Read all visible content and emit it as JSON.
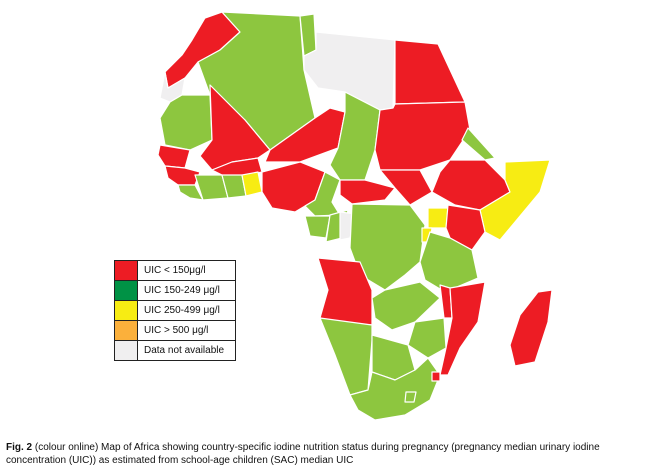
{
  "colors": {
    "red": "#ed1c24",
    "green": "#009245",
    "lightgreen": "#8dc63f",
    "yellow": "#f7ec13",
    "orange": "#fbb03b",
    "na": "#f0eff0"
  },
  "legend": [
    {
      "label": "UIC < 150μg/l",
      "color": "#ed1c24"
    },
    {
      "label": "UIC 150-249 μg/l",
      "color": "#009245"
    },
    {
      "label": "UIC 250-499 μg/l",
      "color": "#f7ec13"
    },
    {
      "label": "UIC > 500 μg/l",
      "color": "#fbb03b"
    },
    {
      "label": "Data not available",
      "color": "#f0eff0"
    }
  ],
  "caption": {
    "fig": "Fig. 2",
    "text": " (colour online) Map of Africa showing country-specific iodine nutrition status during pregnancy (pregnancy median urinary iodine concentration (UIC)) as estimated from school-age children (SAC) median UIC"
  }
}
